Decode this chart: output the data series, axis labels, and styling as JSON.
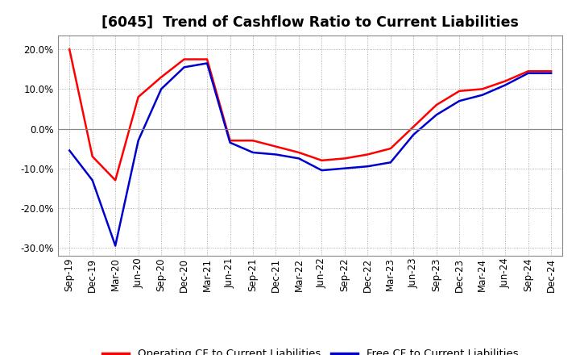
{
  "title": "[6045]  Trend of Cashflow Ratio to Current Liabilities",
  "x_labels": [
    "Sep-19",
    "Dec-19",
    "Mar-20",
    "Jun-20",
    "Sep-20",
    "Dec-20",
    "Mar-21",
    "Jun-21",
    "Sep-21",
    "Dec-21",
    "Mar-22",
    "Jun-22",
    "Sep-22",
    "Dec-22",
    "Mar-23",
    "Jun-23",
    "Sep-23",
    "Dec-23",
    "Mar-24",
    "Jun-24",
    "Sep-24",
    "Dec-24"
  ],
  "operating_cf": [
    0.2,
    -0.07,
    -0.13,
    0.08,
    0.13,
    0.175,
    0.175,
    -0.03,
    -0.03,
    -0.045,
    -0.06,
    -0.08,
    -0.075,
    -0.065,
    -0.05,
    0.005,
    0.06,
    0.095,
    0.1,
    0.12,
    0.145,
    0.145
  ],
  "free_cf": [
    -0.055,
    -0.13,
    -0.295,
    -0.03,
    0.1,
    0.155,
    0.165,
    -0.035,
    -0.06,
    -0.065,
    -0.075,
    -0.105,
    -0.1,
    -0.095,
    -0.085,
    -0.015,
    0.035,
    0.07,
    0.085,
    0.11,
    0.14,
    0.14
  ],
  "operating_color": "#ff0000",
  "free_color": "#0000cc",
  "background_color": "#ffffff",
  "plot_bg_color": "#ffffff",
  "ylim": [
    -0.32,
    0.235
  ],
  "yticks": [
    -0.3,
    -0.2,
    -0.1,
    0.0,
    0.1,
    0.2
  ],
  "grid_color": "#999999",
  "line_width": 1.8,
  "title_fontsize": 12.5,
  "legend_fontsize": 9.5,
  "tick_fontsize": 8.5
}
